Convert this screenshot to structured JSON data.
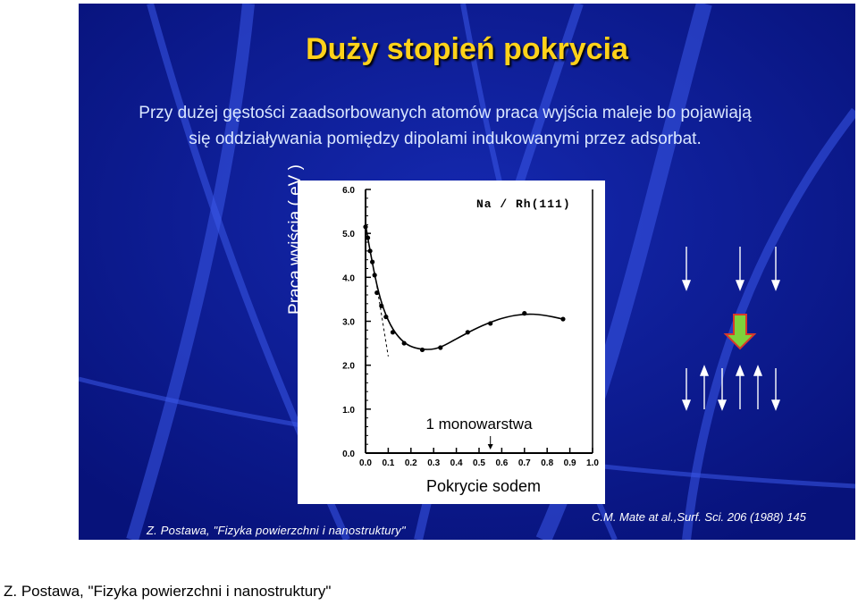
{
  "slide": {
    "title": "Duży stopień pokrycia",
    "paragraph": "Przy dużej gęstości zaadsorbowanych atomów praca wyjścia maleje bo pojawiają się oddziaływania pomiędzy dipolami indukowanymi przez adsorbat.",
    "citation_left": "Z. Postawa, \"Fizyka powierzchni i nanostruktury\"",
    "citation_right": "C.M. Mate at al.,Surf. Sci. 206 (1988) 145",
    "colors": {
      "background": "#0b1a8c",
      "title": "#ffd21a",
      "arrow_fill": "#7ed23a",
      "arrow_stroke": "#d83a2a"
    },
    "icons": [
      "down-arrow-icon",
      "up-arrow-icon",
      "block-arrow-down-icon"
    ]
  },
  "chart_data": {
    "type": "scatter",
    "title": "Na / Rh(111)",
    "xlabel": "Pokrycie sodem",
    "ylabel": "Praca wyjścia ( eV )",
    "xlim": [
      0.0,
      1.0
    ],
    "ylim": [
      0.0,
      6.0
    ],
    "xticks": [
      "0.0",
      "0.1",
      "0.2",
      "0.3",
      "0.4",
      "0.5",
      "0.6",
      "0.7",
      "0.8",
      "0.9",
      "1.0"
    ],
    "yticks": [
      "0.0",
      "1.0",
      "2.0",
      "3.0",
      "4.0",
      "5.0",
      "6.0"
    ],
    "annotation": "1 monowarstwa",
    "annotation_x": 0.55,
    "series": [
      {
        "points": [
          [
            0.0,
            5.15
          ],
          [
            0.01,
            4.9
          ],
          [
            0.02,
            4.6
          ],
          [
            0.03,
            4.35
          ],
          [
            0.04,
            4.05
          ],
          [
            0.05,
            3.65
          ],
          [
            0.07,
            3.35
          ],
          [
            0.09,
            3.1
          ],
          [
            0.12,
            2.75
          ],
          [
            0.17,
            2.5
          ],
          [
            0.25,
            2.35
          ],
          [
            0.33,
            2.4
          ],
          [
            0.45,
            2.75
          ],
          [
            0.55,
            2.95
          ],
          [
            0.7,
            3.18
          ],
          [
            0.87,
            3.05
          ]
        ]
      }
    ],
    "fit_curve": [
      [
        0.0,
        5.2
      ],
      [
        0.02,
        4.6
      ],
      [
        0.05,
        3.8
      ],
      [
        0.08,
        3.25
      ],
      [
        0.12,
        2.8
      ],
      [
        0.17,
        2.5
      ],
      [
        0.22,
        2.38
      ],
      [
        0.28,
        2.35
      ],
      [
        0.33,
        2.4
      ],
      [
        0.4,
        2.6
      ],
      [
        0.48,
        2.82
      ],
      [
        0.55,
        2.98
      ],
      [
        0.62,
        3.1
      ],
      [
        0.7,
        3.17
      ],
      [
        0.78,
        3.15
      ],
      [
        0.87,
        3.05
      ]
    ],
    "extrapolation": [
      [
        0.05,
        3.8
      ],
      [
        0.1,
        2.2
      ]
    ]
  }
}
